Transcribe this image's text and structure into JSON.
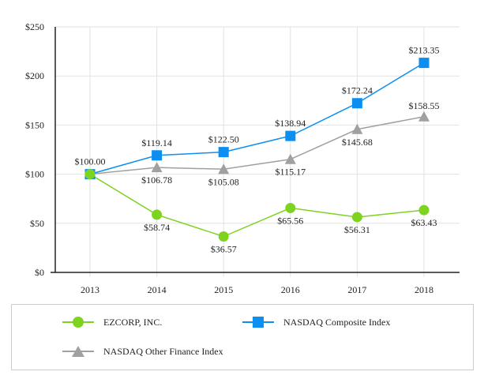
{
  "chart_data": {
    "type": "line",
    "title": "",
    "xlabel": "",
    "ylabel": "",
    "categories": [
      "2013",
      "2014",
      "2015",
      "2016",
      "2017",
      "2018"
    ],
    "ylim": [
      0,
      250
    ],
    "yticks": [
      "$0",
      "$50",
      "$100",
      "$150",
      "$200",
      "$250"
    ],
    "ytick_values": [
      0,
      50,
      100,
      150,
      200,
      250
    ],
    "grid": true,
    "legend_position": "bottom",
    "series": [
      {
        "name": "EZCORP, INC.",
        "color": "#7ed321",
        "marker": "circle",
        "values": [
          100.0,
          58.74,
          36.57,
          65.56,
          56.31,
          63.43
        ],
        "labels": [
          "$100.00",
          "$58.74",
          "$36.57",
          "$65.56",
          "$56.31",
          "$63.43"
        ]
      },
      {
        "name": "NASDAQ Composite Index",
        "color": "#0d8ff2",
        "marker": "square",
        "values": [
          100.0,
          119.14,
          122.5,
          138.94,
          172.24,
          213.35
        ],
        "labels": [
          "",
          "$119.14",
          "$122.50",
          "$138.94",
          "$172.24",
          "$213.35"
        ]
      },
      {
        "name": "NASDAQ Other Finance Index",
        "color": "#a0a0a0",
        "marker": "triangle",
        "values": [
          100.0,
          106.78,
          105.08,
          115.17,
          145.68,
          158.55
        ],
        "labels": [
          "",
          "$106.78",
          "$105.08",
          "$115.17",
          "$145.68",
          "$158.55"
        ]
      }
    ]
  }
}
